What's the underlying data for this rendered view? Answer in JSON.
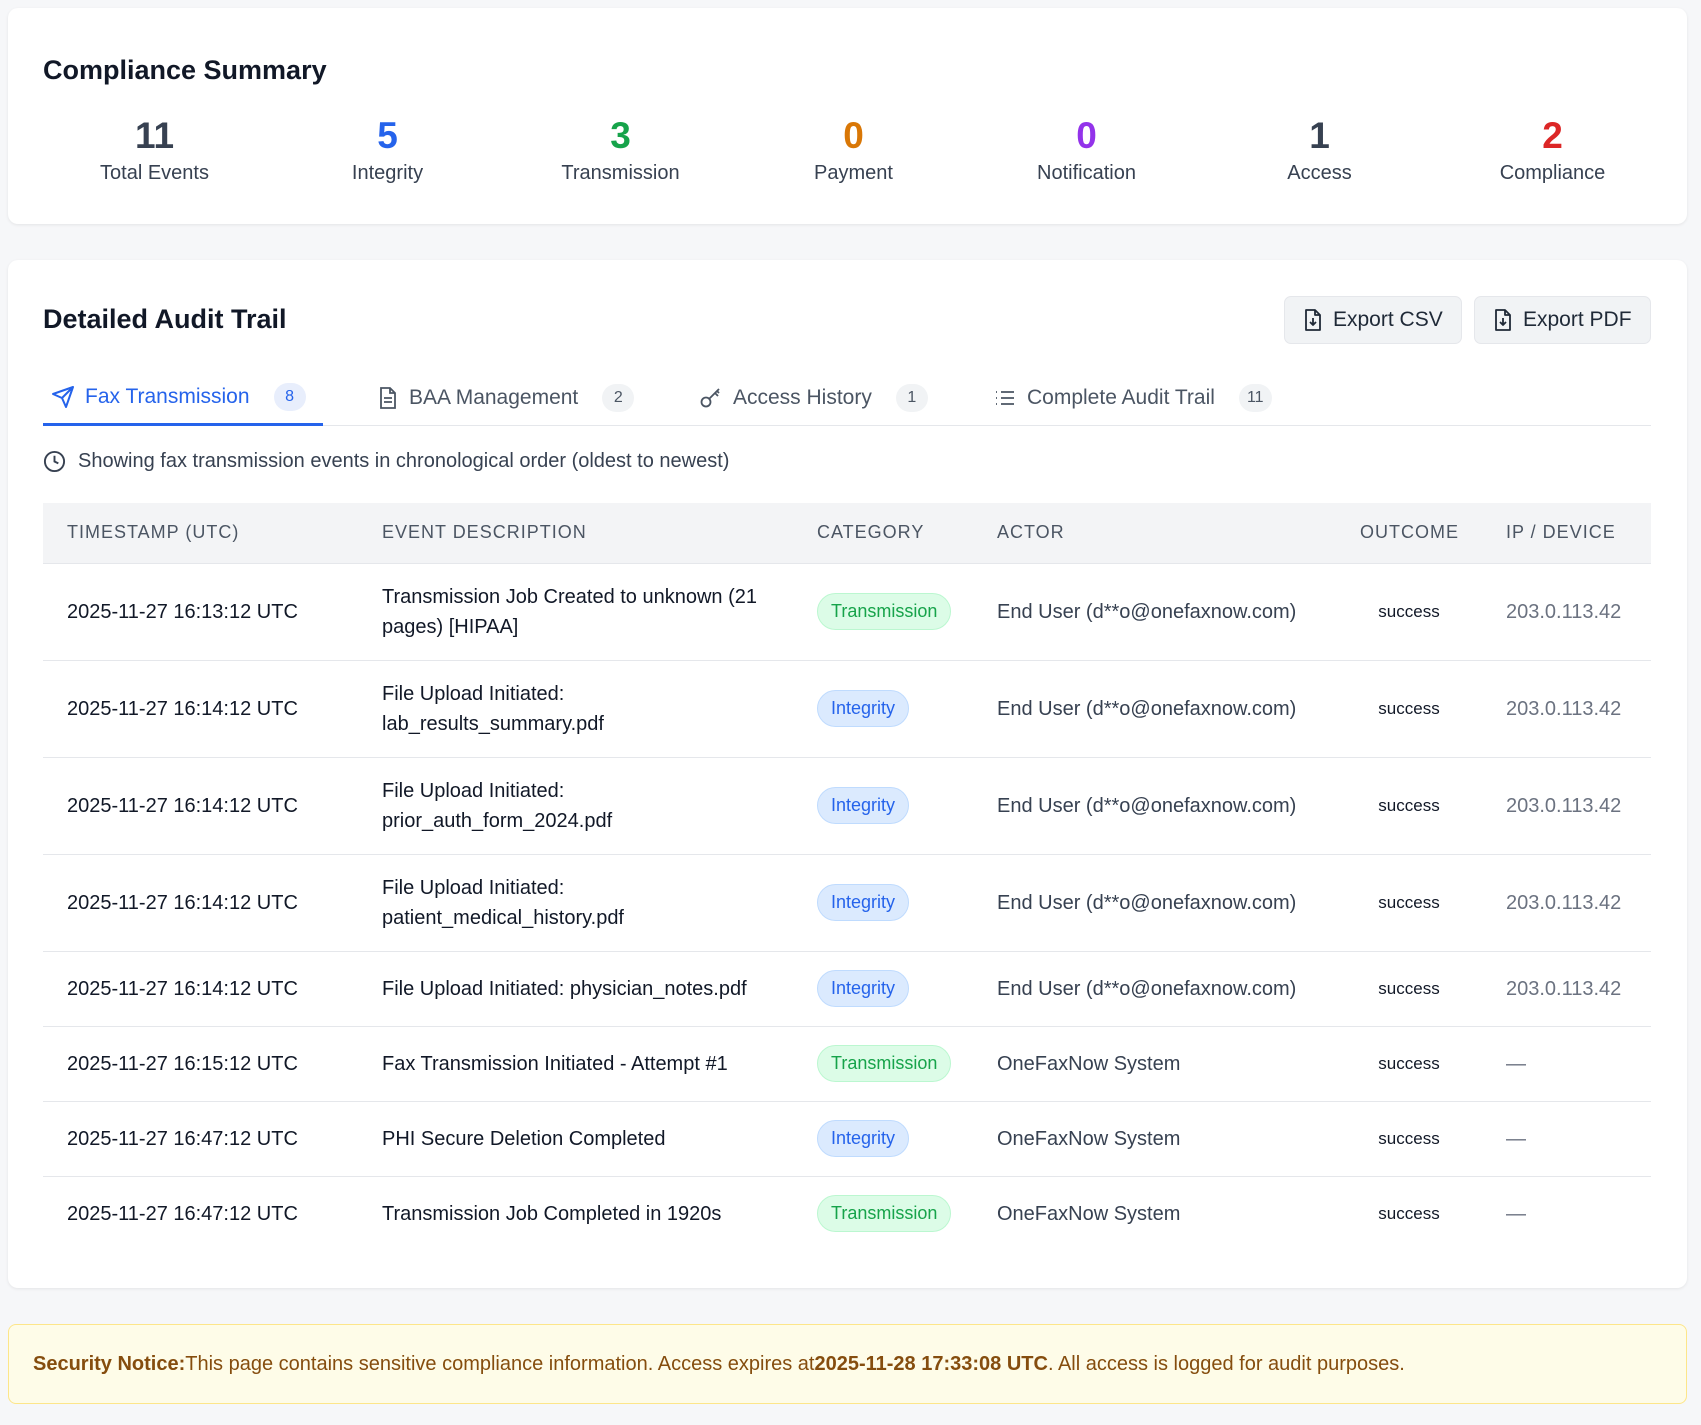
{
  "summary": {
    "title": "Compliance Summary",
    "stats": [
      {
        "value": 11,
        "label": "Total Events",
        "color": "#374151"
      },
      {
        "value": 5,
        "label": "Integrity",
        "color": "#2563eb"
      },
      {
        "value": 3,
        "label": "Transmission",
        "color": "#16a34a"
      },
      {
        "value": 0,
        "label": "Payment",
        "color": "#d97706"
      },
      {
        "value": 0,
        "label": "Notification",
        "color": "#9333ea"
      },
      {
        "value": 1,
        "label": "Access",
        "color": "#374151"
      },
      {
        "value": 2,
        "label": "Compliance",
        "color": "#dc2626"
      }
    ]
  },
  "audit": {
    "title": "Detailed Audit Trail",
    "buttons": [
      "Export CSV",
      "Export PDF"
    ],
    "tabs": [
      {
        "label": "Fax Transmission",
        "count": 8
      },
      {
        "label": "BAA Management",
        "count": 2
      },
      {
        "label": "Access History",
        "count": 1
      },
      {
        "label": "Complete Audit Trail",
        "count": 11
      }
    ],
    "note": "Showing fax transmission events in chronological order (oldest to newest)",
    "table": {
      "headers": [
        "TIMESTAMP (UTC)",
        "EVENT DESCRIPTION",
        "CATEGORY",
        "ACTOR",
        "OUTCOME",
        "IP / DEVICE"
      ],
      "rows": [
        {
          "timestamp": "2025-11-27 16:13:12 UTC",
          "description": "Transmission Job Created to unknown (21 pages) [HIPAA]",
          "badge": {
            "text": "Transmission",
            "color": "#16a34a",
            "background": "#dcfce7",
            "border": "#bbf7d0"
          },
          "actor": "End User (d**o@onefaxnow.com)",
          "outcome": "success",
          "ip": "203.0.113.42"
        },
        {
          "timestamp": "2025-11-27 16:14:12 UTC",
          "description": "File Upload Initiated: lab_results_summary.pdf",
          "badge": {
            "text": "Integrity",
            "color": "#2563eb",
            "background": "#dbeafe",
            "border": "#bfdbfe"
          },
          "actor": "End User (d**o@onefaxnow.com)",
          "outcome": "success",
          "ip": "203.0.113.42"
        },
        {
          "timestamp": "2025-11-27 16:14:12 UTC",
          "description": "File Upload Initiated: prior_auth_form_2024.pdf",
          "badge": {
            "text": "Integrity",
            "color": "#2563eb",
            "background": "#dbeafe",
            "border": "#bfdbfe"
          },
          "actor": "End User (d**o@onefaxnow.com)",
          "outcome": "success",
          "ip": "203.0.113.42"
        },
        {
          "timestamp": "2025-11-27 16:14:12 UTC",
          "description": "File Upload Initiated: patient_medical_history.pdf",
          "badge": {
            "text": "Integrity",
            "color": "#2563eb",
            "background": "#dbeafe",
            "border": "#bfdbfe"
          },
          "actor": "End User (d**o@onefaxnow.com)",
          "outcome": "success",
          "ip": "203.0.113.42"
        },
        {
          "timestamp": "2025-11-27 16:14:12 UTC",
          "description": "File Upload Initiated: physician_notes.pdf",
          "badge": {
            "text": "Integrity",
            "color": "#2563eb",
            "background": "#dbeafe",
            "border": "#bfdbfe"
          },
          "actor": "End User (d**o@onefaxnow.com)",
          "outcome": "success",
          "ip": "203.0.113.42"
        },
        {
          "timestamp": "2025-11-27 16:15:12 UTC",
          "description": "Fax Transmission Initiated - Attempt #1",
          "badge": {
            "text": "Transmission",
            "color": "#16a34a",
            "background": "#dcfce7",
            "border": "#bbf7d0"
          },
          "actor": "OneFaxNow System",
          "outcome": "success",
          "ip": "—"
        },
        {
          "timestamp": "2025-11-27 16:47:12 UTC",
          "description": "PHI Secure Deletion Completed",
          "badge": {
            "text": "Integrity",
            "color": "#2563eb",
            "background": "#dbeafe",
            "border": "#bfdbfe"
          },
          "actor": "OneFaxNow System",
          "outcome": "success",
          "ip": "—"
        },
        {
          "timestamp": "2025-11-27 16:47:12 UTC",
          "description": "Transmission Job Completed in 1920s",
          "badge": {
            "text": "Transmission",
            "color": "#16a34a",
            "background": "#dcfce7",
            "border": "#bbf7d0"
          },
          "actor": "OneFaxNow System",
          "outcome": "success",
          "ip": "—"
        }
      ]
    }
  },
  "notice": {
    "label": "Security Notice:",
    "text_1": "This page contains sensitive compliance information. Access expires at",
    "expires": "2025-11-28 17:33:08 UTC",
    "text_2": ". All access is logged for audit purposes."
  }
}
